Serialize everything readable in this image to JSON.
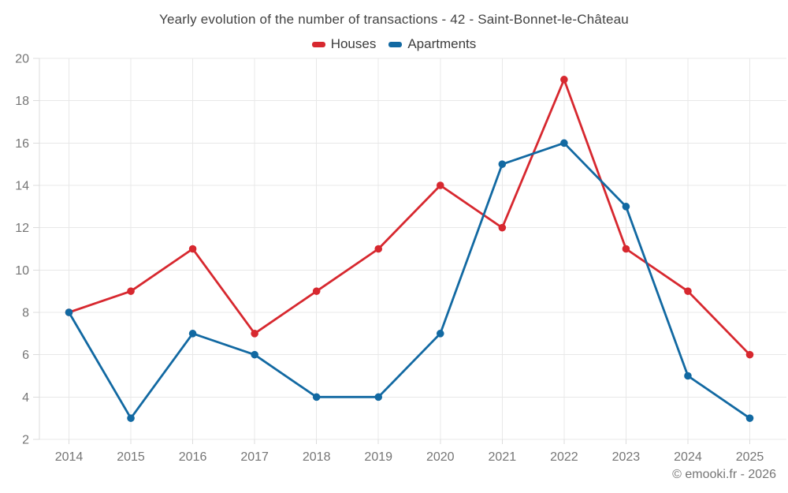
{
  "title": "Yearly evolution of the number of transactions - 42 - Saint-Bonnet-le-Château",
  "footer_credit": "© emooki.fr - 2026",
  "colors": {
    "houses": "#d7282f",
    "apartments": "#1269a2",
    "grid": "#e8e8e8",
    "axis_text": "#757575",
    "title_text": "#424242"
  },
  "chart_data": {
    "type": "line",
    "title": "Yearly evolution of the number of transactions - 42 - Saint-Bonnet-le-Château",
    "categories": [
      "2014",
      "2015",
      "2016",
      "2017",
      "2018",
      "2019",
      "2020",
      "2021",
      "2022",
      "2023",
      "2024",
      "2025"
    ],
    "series": [
      {
        "name": "Houses",
        "color": "#d7282f",
        "values": [
          8,
          9,
          11,
          7,
          9,
          11,
          14,
          12,
          19,
          11,
          9,
          6
        ]
      },
      {
        "name": "Apartments",
        "color": "#1269a2",
        "values": [
          8,
          3,
          7,
          6,
          4,
          4,
          7,
          15,
          16,
          13,
          5,
          3
        ]
      }
    ],
    "xlabel": "",
    "ylabel": "",
    "ylim": [
      2,
      20
    ],
    "ytick_step": 2,
    "grid": true,
    "legend_position": "top",
    "marker": "circle"
  }
}
